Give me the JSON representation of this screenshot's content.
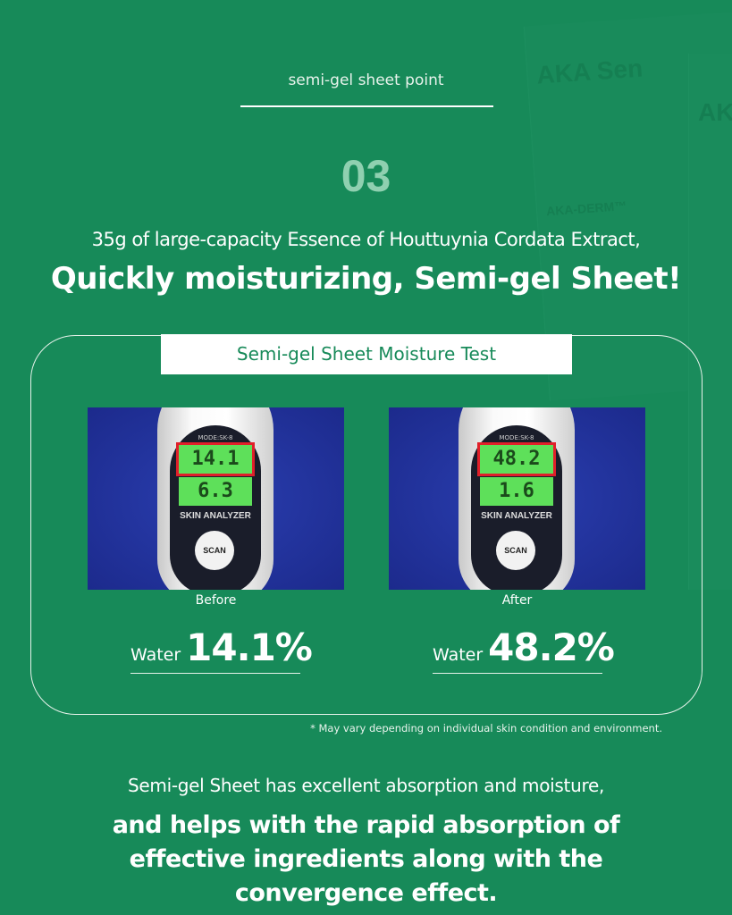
{
  "background": {
    "packaging_text_1": "AKA Sen",
    "packaging_text_2": "AKA-DERM™",
    "packaging_text_3": "AK"
  },
  "header": {
    "eyebrow": "semi-gel sheet point",
    "number": "03",
    "subtitle": "35g of large-capacity Essence of Houttuynia Cordata Extract,",
    "title": "Quickly moisturizing, Semi-gel Sheet!"
  },
  "test": {
    "label": "Semi-gel Sheet Moisture Test",
    "device": {
      "mode": "MODE:SK-8",
      "name": "SKIN ANALYZER",
      "button": "SCAN"
    },
    "panels": [
      {
        "caption": "Before",
        "lcd_water": "14.1",
        "lcd_oil": "6.3",
        "water_label": "Water",
        "water_value": "14.1%"
      },
      {
        "caption": "After",
        "lcd_water": "48.2",
        "lcd_oil": "1.6",
        "water_label": "Water",
        "water_value": "48.2%"
      }
    ],
    "note": "* May vary depending on individual skin condition and environment."
  },
  "footer": {
    "line1": "Semi-gel Sheet has excellent absorption and moisture,",
    "line2": "and helps with the rapid absorption of effective ingredients along with the convergence effect."
  },
  "colors": {
    "background": "#178a59",
    "highlight": "#e0202a",
    "lcd": "#5ee05a"
  }
}
